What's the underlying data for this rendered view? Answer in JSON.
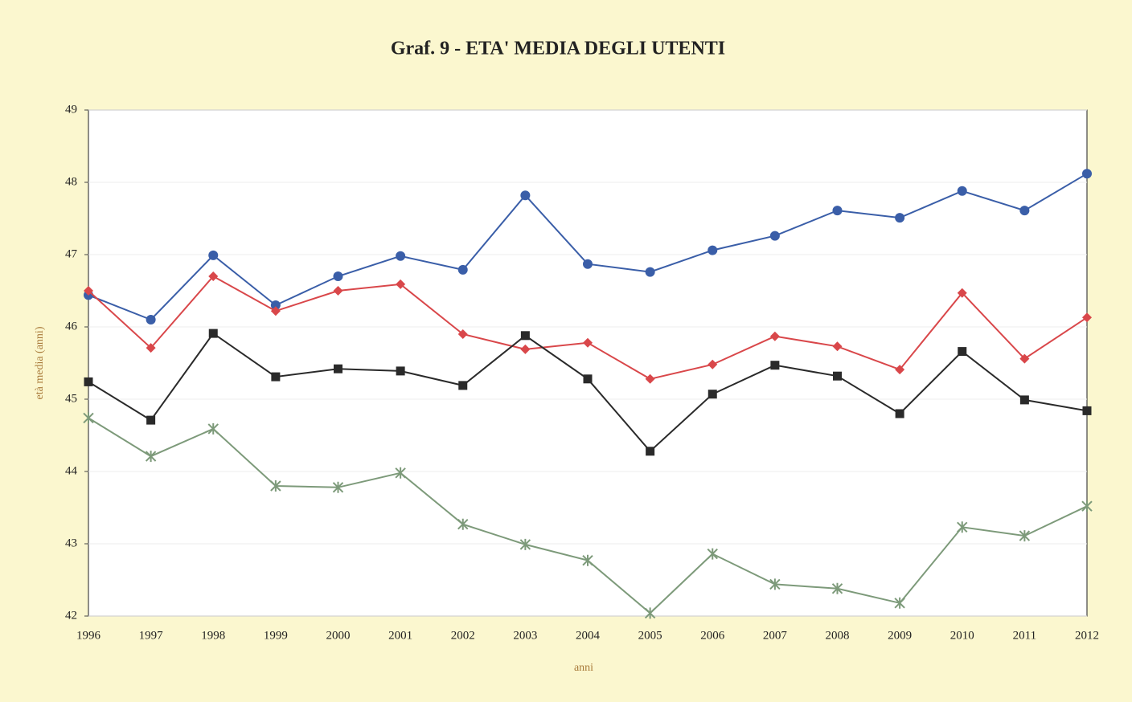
{
  "chart_data": {
    "type": "line",
    "title": "Graf. 9 - ETA' MEDIA DEGLI UTENTI",
    "xlabel": "anni",
    "ylabel": "età media (anni)",
    "categories": [
      "1996",
      "1997",
      "1998",
      "1999",
      "2000",
      "2001",
      "2002",
      "2003",
      "2004",
      "2005",
      "2006",
      "2007",
      "2008",
      "2009",
      "2010",
      "2011",
      "2012"
    ],
    "ylim": [
      42,
      49
    ],
    "yticks": [
      42,
      43,
      44,
      45,
      46,
      47,
      48,
      49
    ],
    "grid": true,
    "series": [
      {
        "color": "#3a5ea8",
        "marker": "circle",
        "values": [
          46.44,
          46.1,
          46.99,
          46.3,
          46.7,
          46.98,
          46.79,
          47.82,
          46.87,
          46.76,
          47.06,
          47.26,
          47.61,
          47.51,
          47.88,
          47.61,
          48.12
        ]
      },
      {
        "color": "#d9474a",
        "marker": "diamond",
        "values": [
          46.5,
          45.71,
          46.7,
          46.22,
          46.5,
          46.59,
          45.9,
          45.69,
          45.78,
          45.28,
          45.48,
          45.87,
          45.73,
          45.41,
          46.47,
          45.56,
          46.13
        ]
      },
      {
        "color": "#2a2a2a",
        "marker": "square",
        "values": [
          45.24,
          44.71,
          45.91,
          45.31,
          45.42,
          45.39,
          45.19,
          45.88,
          45.28,
          44.28,
          45.07,
          45.47,
          45.32,
          44.8,
          45.66,
          44.99,
          44.84
        ]
      },
      {
        "color": "#7d9a7a",
        "marker": "star",
        "values": [
          44.74,
          44.21,
          44.59,
          43.8,
          43.78,
          43.98,
          43.27,
          42.99,
          42.77,
          42.04,
          42.86,
          42.44,
          42.38,
          42.18,
          43.23,
          43.11,
          43.52
        ]
      }
    ]
  }
}
